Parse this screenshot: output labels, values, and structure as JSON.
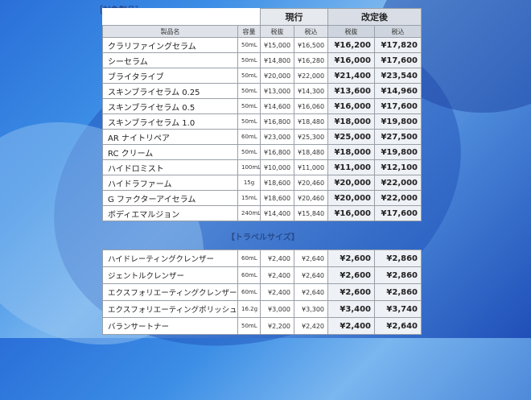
{
  "section_products": "［対象製品］",
  "section_travel": "【トラベルサイズ】",
  "headers": {
    "group_current": "現行",
    "group_new": "改定後",
    "product_name": "製品名",
    "capacity": "容量",
    "tax_excl": "税抜",
    "tax_incl": "税込"
  },
  "products": [
    {
      "name": "クラリファイングセラム",
      "capacity": "50mL",
      "cur_excl": "¥15,000",
      "cur_incl": "¥16,500",
      "new_excl": "¥16,200",
      "new_incl": "¥17,820"
    },
    {
      "name": "シーセラム",
      "capacity": "50mL",
      "cur_excl": "¥14,800",
      "cur_incl": "¥16,280",
      "new_excl": "¥16,000",
      "new_incl": "¥17,600"
    },
    {
      "name": "ブライタライブ",
      "capacity": "50mL",
      "cur_excl": "¥20,000",
      "cur_incl": "¥22,000",
      "new_excl": "¥21,400",
      "new_incl": "¥23,540"
    },
    {
      "name": "スキンブライセラム 0.25",
      "capacity": "50mL",
      "cur_excl": "¥13,000",
      "cur_incl": "¥14,300",
      "new_excl": "¥13,600",
      "new_incl": "¥14,960"
    },
    {
      "name": "スキンブライセラム 0.5",
      "capacity": "50mL",
      "cur_excl": "¥14,600",
      "cur_incl": "¥16,060",
      "new_excl": "¥16,000",
      "new_incl": "¥17,600"
    },
    {
      "name": "スキンブライセラム 1.0",
      "capacity": "50mL",
      "cur_excl": "¥16,800",
      "cur_incl": "¥18,480",
      "new_excl": "¥18,000",
      "new_incl": "¥19,800"
    },
    {
      "name": "AR ナイトリペア",
      "capacity": "60mL",
      "cur_excl": "¥23,000",
      "cur_incl": "¥25,300",
      "new_excl": "¥25,000",
      "new_incl": "¥27,500"
    },
    {
      "name": "RC クリーム",
      "capacity": "50mL",
      "cur_excl": "¥16,800",
      "cur_incl": "¥18,480",
      "new_excl": "¥18,000",
      "new_incl": "¥19,800"
    },
    {
      "name": "ハイドロミスト",
      "capacity": "100mL",
      "cur_excl": "¥10,000",
      "cur_incl": "¥11,000",
      "new_excl": "¥11,000",
      "new_incl": "¥12,100"
    },
    {
      "name": "ハイドラファーム",
      "capacity": "15g",
      "cur_excl": "¥18,600",
      "cur_incl": "¥20,460",
      "new_excl": "¥20,000",
      "new_incl": "¥22,000"
    },
    {
      "name": "G ファクターアイセラム",
      "capacity": "15mL",
      "cur_excl": "¥18,600",
      "cur_incl": "¥20,460",
      "new_excl": "¥20,000",
      "new_incl": "¥22,000"
    },
    {
      "name": "ボディエマルジョン",
      "capacity": "240mL",
      "cur_excl": "¥14,400",
      "cur_incl": "¥15,840",
      "new_excl": "¥16,000",
      "new_incl": "¥17,600"
    }
  ],
  "travel": [
    {
      "name": "ハイドレーティングクレンザー",
      "capacity": "60mL",
      "cur_excl": "¥2,400",
      "cur_incl": "¥2,640",
      "new_excl": "¥2,600",
      "new_incl": "¥2,860"
    },
    {
      "name": "ジェントルクレンザー",
      "capacity": "60mL",
      "cur_excl": "¥2,400",
      "cur_incl": "¥2,640",
      "new_excl": "¥2,600",
      "new_incl": "¥2,860"
    },
    {
      "name": "エクスフォリエーティングクレンザー",
      "capacity": "60mL",
      "cur_excl": "¥2,400",
      "cur_incl": "¥2,640",
      "new_excl": "¥2,600",
      "new_incl": "¥2,860"
    },
    {
      "name": "エクスフォリエーティングポリッシュ",
      "capacity": "16.2g",
      "cur_excl": "¥3,000",
      "cur_incl": "¥3,300",
      "new_excl": "¥3,400",
      "new_incl": "¥3,740"
    },
    {
      "name": "バランサートナー",
      "capacity": "50mL",
      "cur_excl": "¥2,200",
      "cur_incl": "¥2,420",
      "new_excl": "¥2,400",
      "new_incl": "¥2,640"
    }
  ]
}
